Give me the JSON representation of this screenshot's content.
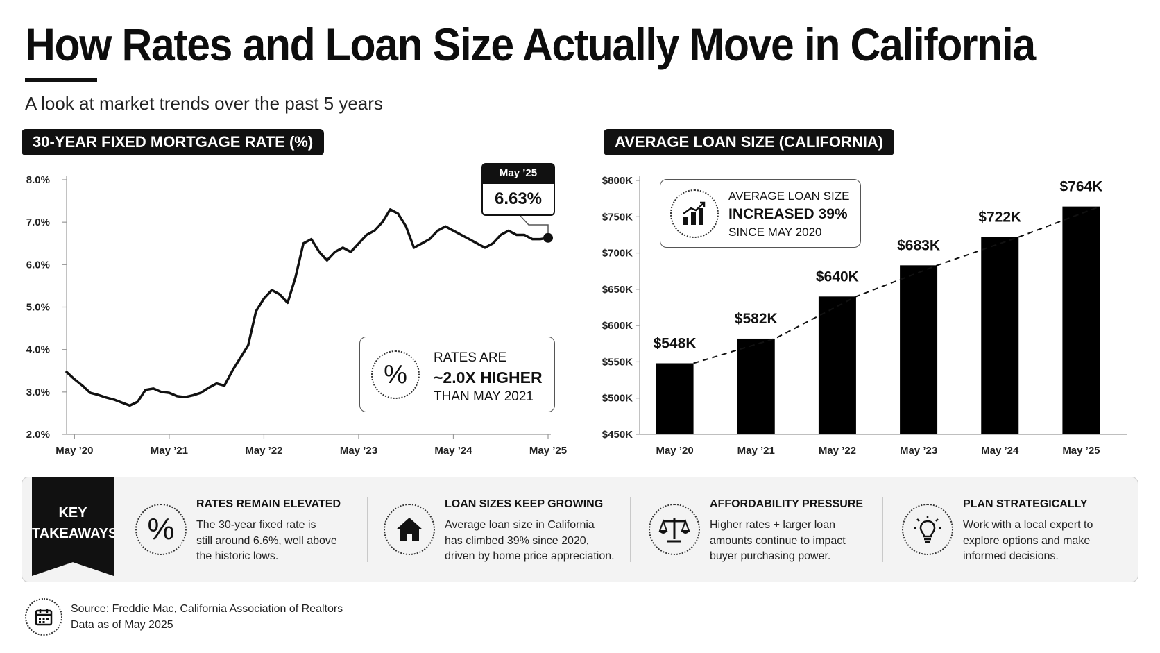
{
  "title": "How Rates and Loan Size Actually Move in California",
  "subtitle": "A look at market trends over the past 5 years",
  "left_panel": {
    "heading": "30-YEAR FIXED MORTGAGE RATE (%)",
    "callout": {
      "label": "May ’25",
      "value": "6.63%"
    },
    "info": {
      "line1": "RATES ARE",
      "line2": "~2.0X HIGHER",
      "line3": "THAN MAY 2021",
      "icon": "percent-icon"
    }
  },
  "right_panel": {
    "heading": "AVERAGE LOAN SIZE (CALIFORNIA)",
    "info": {
      "line1": "AVERAGE LOAN SIZE",
      "line2": "INCREASED 39%",
      "line3": "SINCE MAY 2020",
      "icon": "growth-chart-icon"
    }
  },
  "chart_data": [
    {
      "type": "line",
      "title": "30-YEAR FIXED MORTGAGE RATE (%)",
      "x_tick_labels": [
        "May ’20",
        "May ’21",
        "May ’22",
        "May ’23",
        "May ’24",
        "May ’25"
      ],
      "y_tick_labels": [
        "2.0%",
        "3.0%",
        "4.0%",
        "5.0%",
        "6.0%",
        "7.0%",
        "8.0%"
      ],
      "ylim": [
        2.0,
        8.0
      ],
      "xlim": [
        "2020-04",
        "2025-05"
      ],
      "grid": false,
      "series": [
        {
          "x": [
            "2020-04",
            "2020-05",
            "2020-06",
            "2020-07",
            "2020-08",
            "2020-09",
            "2020-10",
            "2020-11",
            "2020-12",
            "2021-01",
            "2021-02",
            "2021-03",
            "2021-04",
            "2021-05",
            "2021-06",
            "2021-07",
            "2021-08",
            "2021-09",
            "2021-10",
            "2021-11",
            "2021-12",
            "2022-01",
            "2022-02",
            "2022-03",
            "2022-04",
            "2022-05",
            "2022-06",
            "2022-07",
            "2022-08",
            "2022-09",
            "2022-10",
            "2022-11",
            "2022-12",
            "2023-01",
            "2023-02",
            "2023-03",
            "2023-04",
            "2023-05",
            "2023-06",
            "2023-07",
            "2023-08",
            "2023-09",
            "2023-10",
            "2023-11",
            "2023-12",
            "2024-01",
            "2024-02",
            "2024-03",
            "2024-04",
            "2024-05",
            "2024-06",
            "2024-07",
            "2024-08",
            "2024-09",
            "2024-10",
            "2024-11",
            "2024-12",
            "2025-01",
            "2025-02",
            "2025-03",
            "2025-04",
            "2025-05"
          ],
          "y": [
            3.47,
            3.3,
            3.15,
            2.98,
            2.93,
            2.87,
            2.82,
            2.75,
            2.68,
            2.77,
            3.05,
            3.08,
            3.0,
            2.98,
            2.9,
            2.88,
            2.92,
            2.98,
            3.1,
            3.2,
            3.15,
            3.5,
            3.8,
            4.1,
            4.9,
            5.2,
            5.4,
            5.3,
            5.1,
            5.7,
            6.5,
            6.6,
            6.3,
            6.1,
            6.3,
            6.4,
            6.3,
            6.5,
            6.7,
            6.8,
            7.0,
            7.3,
            7.2,
            6.9,
            6.4,
            6.5,
            6.6,
            6.8,
            6.9,
            6.8,
            6.7,
            6.6,
            6.5,
            6.4,
            6.5,
            6.7,
            6.8,
            6.7,
            6.7,
            6.6,
            6.6,
            6.63
          ]
        }
      ],
      "annotation": {
        "x": "2025-05",
        "y": 6.63,
        "label": "6.63%"
      }
    },
    {
      "type": "bar",
      "title": "AVERAGE LOAN SIZE (CALIFORNIA)",
      "categories": [
        "May ’20",
        "May ’21",
        "May ’22",
        "May ’23",
        "May ’24",
        "May ’25"
      ],
      "values": [
        548,
        582,
        640,
        683,
        722,
        764
      ],
      "value_labels": [
        "$548K",
        "$582K",
        "$640K",
        "$683K",
        "$722K",
        "$764K"
      ],
      "y_tick_labels": [
        "$450K",
        "$500K",
        "$550K",
        "$600K",
        "$650K",
        "$700K",
        "$750K",
        "$800K"
      ],
      "ylim": [
        450,
        800
      ],
      "unit": "K USD",
      "trend_line": "dashed",
      "grid": false
    }
  ],
  "takeaways": {
    "banner": [
      "KEY",
      "TAKEAWAYS"
    ],
    "items": [
      {
        "icon": "percent-icon",
        "title": "RATES REMAIN ELEVATED",
        "lines": [
          "The 30-year fixed rate is",
          "still around 6.6%, well above",
          "the historic lows."
        ]
      },
      {
        "icon": "house-icon",
        "title": "LOAN SIZES KEEP GROWING",
        "lines": [
          "Average loan size in California",
          "has climbed 39% since 2020,",
          "driven by home price appreciation."
        ]
      },
      {
        "icon": "scales-icon",
        "title": "AFFORDABILITY PRESSURE",
        "lines": [
          "Higher rates + larger loan",
          "amounts continue to impact",
          "buyer purchasing power."
        ]
      },
      {
        "icon": "lightbulb-icon",
        "title": "PLAN STRATEGICALLY",
        "lines": [
          "Work with a local expert to",
          "explore options and make",
          "informed decisions."
        ]
      }
    ]
  },
  "source": {
    "icon": "calendar-icon",
    "line1": "Source: Freddie Mac, California Association of Realtors",
    "line2": "Data as of May 2025"
  },
  "colors": {
    "primary": "#111111",
    "panel_bg": "#f3f3f3",
    "border": "#cfcfcf"
  }
}
